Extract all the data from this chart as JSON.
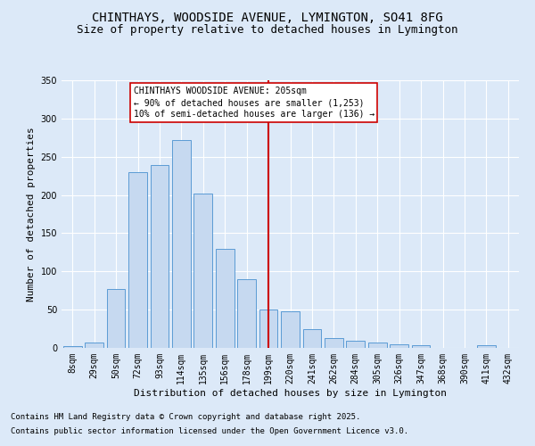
{
  "title": "CHINTHAYS, WOODSIDE AVENUE, LYMINGTON, SO41 8FG",
  "subtitle": "Size of property relative to detached houses in Lymington",
  "xlabel": "Distribution of detached houses by size in Lymington",
  "ylabel": "Number of detached properties",
  "categories": [
    "8sqm",
    "29sqm",
    "50sqm",
    "72sqm",
    "93sqm",
    "114sqm",
    "135sqm",
    "156sqm",
    "178sqm",
    "199sqm",
    "220sqm",
    "241sqm",
    "262sqm",
    "284sqm",
    "305sqm",
    "326sqm",
    "347sqm",
    "368sqm",
    "390sqm",
    "411sqm",
    "432sqm"
  ],
  "values": [
    2,
    7,
    77,
    230,
    239,
    272,
    202,
    130,
    90,
    50,
    48,
    25,
    13,
    9,
    7,
    5,
    4,
    0,
    0,
    3,
    0
  ],
  "bar_color": "#c6d9f0",
  "bar_edge_color": "#5b9bd5",
  "vline_x_index": 9,
  "vline_color": "#cc0000",
  "annotation_title": "CHINTHAYS WOODSIDE AVENUE: 205sqm",
  "annotation_line1": "← 90% of detached houses are smaller (1,253)",
  "annotation_line2": "10% of semi-detached houses are larger (136) →",
  "annotation_box_edge_color": "#cc0000",
  "annotation_box_fill": "#ffffff",
  "ylim": [
    0,
    350
  ],
  "yticks": [
    0,
    50,
    100,
    150,
    200,
    250,
    300,
    350
  ],
  "background_color": "#dce9f8",
  "plot_background": "#dce9f8",
  "grid_color": "#ffffff",
  "footer_line1": "Contains HM Land Registry data © Crown copyright and database right 2025.",
  "footer_line2": "Contains public sector information licensed under the Open Government Licence v3.0.",
  "title_fontsize": 10,
  "subtitle_fontsize": 9,
  "axis_label_fontsize": 8,
  "tick_fontsize": 7,
  "annotation_fontsize": 7,
  "footer_fontsize": 6.5
}
